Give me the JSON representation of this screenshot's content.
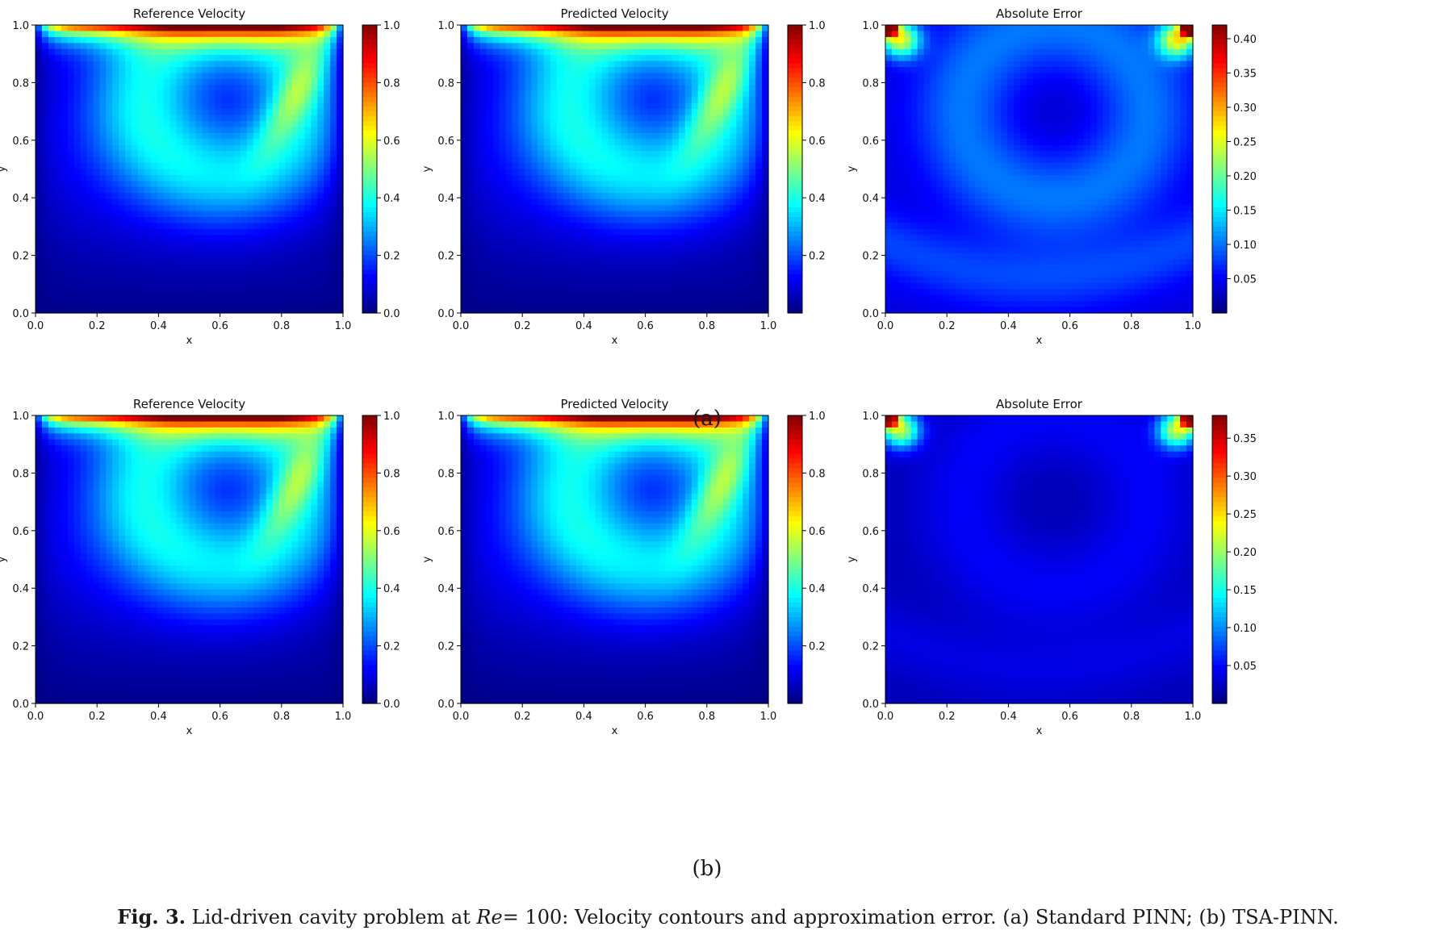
{
  "caption": {
    "label": "Fig. 3.",
    "text_a": "Lid-driven cavity problem at",
    "re_symbol": "Re",
    "re_value": "= 100",
    "text_b": ": Velocity contours and approximation error. (a) Standard PINN; (b) TSA-PINN."
  },
  "chart_data": [
    {
      "type": "heatmap",
      "row": "a",
      "title": "Reference Velocity",
      "xlabel": "x",
      "ylabel": "y",
      "xlim": [
        0,
        1
      ],
      "ylim": [
        0,
        1
      ],
      "x_ticks": [
        "0.0",
        "0.2",
        "0.4",
        "0.6",
        "0.8",
        "1.0"
      ],
      "y_ticks": [
        "0.0",
        "0.2",
        "0.4",
        "0.6",
        "0.8",
        "1.0"
      ],
      "colorbar": {
        "range": [
          0.0,
          1.0
        ],
        "ticks": [
          0.0,
          0.2,
          0.4,
          0.6,
          0.8,
          1.0
        ],
        "tick_labels": [
          "0.0",
          "0.2",
          "0.4",
          "0.6",
          "0.8",
          "1.0"
        ]
      },
      "field": "velocity",
      "colormap": "jet"
    },
    {
      "type": "heatmap",
      "row": "a",
      "title": "Predicted Velocity",
      "xlabel": "x",
      "ylabel": "y",
      "xlim": [
        0,
        1
      ],
      "ylim": [
        0,
        1
      ],
      "x_ticks": [
        "0.0",
        "0.2",
        "0.4",
        "0.6",
        "0.8",
        "1.0"
      ],
      "y_ticks": [
        "0.0",
        "0.2",
        "0.4",
        "0.6",
        "0.8",
        "1.0"
      ],
      "colorbar": {
        "range": [
          0.0,
          1.0
        ],
        "ticks": [
          0.2,
          0.4,
          0.6,
          0.8,
          1.0
        ],
        "tick_labels": [
          "0.2",
          "0.4",
          "0.6",
          "0.8",
          "1.0"
        ]
      },
      "field": "velocity",
      "colormap": "jet"
    },
    {
      "type": "heatmap",
      "row": "a",
      "title": "Absolute Error",
      "xlabel": "x",
      "ylabel": "y",
      "xlim": [
        0,
        1
      ],
      "ylim": [
        0,
        1
      ],
      "x_ticks": [
        "0.0",
        "0.2",
        "0.4",
        "0.6",
        "0.8",
        "1.0"
      ],
      "y_ticks": [
        "0.0",
        "0.2",
        "0.4",
        "0.6",
        "0.8",
        "1.0"
      ],
      "colorbar": {
        "range": [
          0.0,
          0.42
        ],
        "ticks": [
          0.05,
          0.1,
          0.15,
          0.2,
          0.25,
          0.3,
          0.35,
          0.4
        ],
        "tick_labels": [
          "0.05",
          "0.10",
          "0.15",
          "0.20",
          "0.25",
          "0.30",
          "0.35",
          "0.40"
        ]
      },
      "field": "error",
      "error_level": 0.17,
      "colormap": "jet"
    },
    {
      "type": "heatmap",
      "row": "b",
      "title": "Reference Velocity",
      "xlabel": "x",
      "ylabel": "y",
      "xlim": [
        0,
        1
      ],
      "ylim": [
        0,
        1
      ],
      "x_ticks": [
        "0.0",
        "0.2",
        "0.4",
        "0.6",
        "0.8",
        "1.0"
      ],
      "y_ticks": [
        "0.0",
        "0.2",
        "0.4",
        "0.6",
        "0.8",
        "1.0"
      ],
      "colorbar": {
        "range": [
          0.0,
          1.0
        ],
        "ticks": [
          0.0,
          0.2,
          0.4,
          0.6,
          0.8,
          1.0
        ],
        "tick_labels": [
          "0.0",
          "0.2",
          "0.4",
          "0.6",
          "0.8",
          "1.0"
        ]
      },
      "field": "velocity",
      "colormap": "jet"
    },
    {
      "type": "heatmap",
      "row": "b",
      "title": "Predicted Velocity",
      "xlabel": "x",
      "ylabel": "y",
      "xlim": [
        0,
        1
      ],
      "ylim": [
        0,
        1
      ],
      "x_ticks": [
        "0.0",
        "0.2",
        "0.4",
        "0.6",
        "0.8",
        "1.0"
      ],
      "y_ticks": [
        "0.0",
        "0.2",
        "0.4",
        "0.6",
        "0.8",
        "1.0"
      ],
      "colorbar": {
        "range": [
          0.0,
          1.0
        ],
        "ticks": [
          0.2,
          0.4,
          0.6,
          0.8,
          1.0
        ],
        "tick_labels": [
          "0.2",
          "0.4",
          "0.6",
          "0.8",
          "1.0"
        ]
      },
      "field": "velocity",
      "colormap": "jet"
    },
    {
      "type": "heatmap",
      "row": "b",
      "title": "Absolute Error",
      "xlabel": "x",
      "ylabel": "y",
      "xlim": [
        0,
        1
      ],
      "ylim": [
        0,
        1
      ],
      "x_ticks": [
        "0.0",
        "0.2",
        "0.4",
        "0.6",
        "0.8",
        "1.0"
      ],
      "y_ticks": [
        "0.0",
        "0.2",
        "0.4",
        "0.6",
        "0.8",
        "1.0"
      ],
      "colorbar": {
        "range": [
          0.0,
          0.38
        ],
        "ticks": [
          0.05,
          0.1,
          0.15,
          0.2,
          0.25,
          0.3,
          0.35
        ],
        "tick_labels": [
          "0.05",
          "0.10",
          "0.15",
          "0.20",
          "0.25",
          "0.30",
          "0.35"
        ]
      },
      "field": "error",
      "error_level": 0.07,
      "colormap": "jet"
    }
  ],
  "subfigure_labels": [
    "(a)",
    "(b)"
  ]
}
